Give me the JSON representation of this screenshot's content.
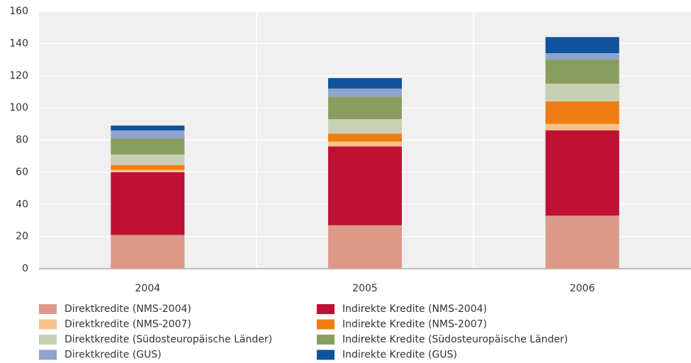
{
  "chart_data": {
    "type": "stacked_bar",
    "categories": [
      "2004",
      "2005",
      "2006"
    ],
    "series": [
      {
        "name": "Direktkredite (NMS-2004)",
        "color": "#dc998a",
        "values": [
          21,
          27,
          33
        ]
      },
      {
        "name": "Indirekte Kredite (NMS-2004)",
        "color": "#be1133",
        "values": [
          39,
          49,
          53
        ]
      },
      {
        "name": "Direktkredite (NMS-2007)",
        "color": "#f8c18c",
        "values": [
          1.5,
          3,
          4
        ]
      },
      {
        "name": "Indirekte Kredite (NMS-2007)",
        "color": "#ee7e14",
        "values": [
          3,
          5,
          14
        ]
      },
      {
        "name": "Direktkredite (Südosteuropäische Länder)",
        "color": "#c9cfb3",
        "values": [
          6.5,
          9,
          11
        ]
      },
      {
        "name": "Indirekte Kredite (Südosteuropäische Länder)",
        "color": "#8a9f5f",
        "values": [
          10,
          14,
          15
        ]
      },
      {
        "name": "Direktkredite (GUS)",
        "color": "#8fa3cf",
        "values": [
          5,
          5,
          4
        ]
      },
      {
        "name": "Indirekte Kredite (GUS)",
        "color": "#0e539c",
        "values": [
          3,
          6.5,
          10
        ]
      }
    ],
    "ylim": [
      0,
      160
    ],
    "yticks": [
      0,
      20,
      40,
      60,
      80,
      100,
      120,
      140,
      160
    ],
    "grid": true
  }
}
